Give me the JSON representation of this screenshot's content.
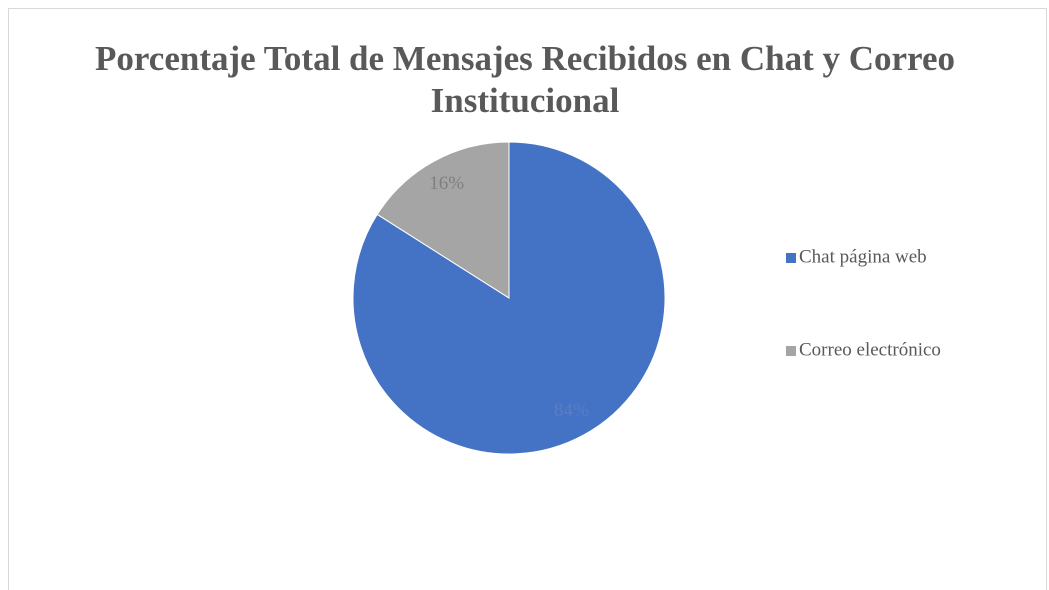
{
  "chart_data": {
    "type": "pie",
    "title": "Porcentaje Total de Mensajes Recibidos en Chat y Correo Institucional",
    "categories": [
      "Chat página web",
      "Correo electrónico"
    ],
    "values": [
      84,
      16
    ],
    "value_labels": [
      "84%",
      "16%"
    ],
    "colors": [
      "#4472c4",
      "#a5a5a5"
    ],
    "legend": "right"
  }
}
